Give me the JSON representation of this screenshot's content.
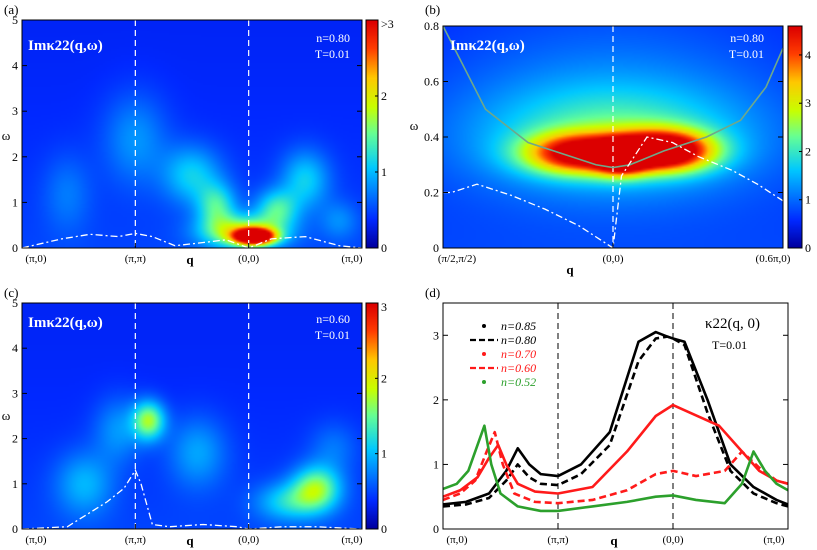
{
  "chart_data": [
    {
      "id": "a",
      "type": "heatmap",
      "panel_label": "(a)",
      "title": "Imκ22(q,ω)",
      "params": [
        "n=0.80",
        "T=0.01"
      ],
      "xlabel": "q",
      "ylabel": "ω",
      "xticks": [
        "(π,0)",
        "(π,π)",
        "(0,0)",
        "(π,0)"
      ],
      "xtick_pos": [
        0,
        1,
        2,
        3
      ],
      "xlim": [
        0,
        3
      ],
      "ylim": [
        0,
        5
      ],
      "yticks": [
        0,
        1,
        2,
        3,
        4,
        5
      ],
      "dashed_x": [
        1,
        2
      ],
      "colorbar": {
        "ticks": [
          "0",
          "1",
          "2",
          ">3"
        ],
        "values": [
          0,
          1,
          2,
          3
        ],
        "range": [
          0,
          3
        ]
      },
      "peaks": [
        {
          "x": 2.05,
          "y": 0.25,
          "sx": 0.12,
          "sy": 0.12,
          "a": 3.2
        },
        {
          "x": 1.95,
          "y": 0.35,
          "sx": 0.25,
          "sy": 0.25,
          "a": 1.4
        },
        {
          "x": 1.72,
          "y": 0.9,
          "sx": 0.12,
          "sy": 0.35,
          "a": 0.9
        },
        {
          "x": 2.25,
          "y": 0.85,
          "sx": 0.13,
          "sy": 0.3,
          "a": 0.9
        },
        {
          "x": 1.5,
          "y": 1.6,
          "sx": 0.18,
          "sy": 0.45,
          "a": 0.7
        },
        {
          "x": 2.5,
          "y": 1.5,
          "sx": 0.15,
          "sy": 0.45,
          "a": 0.7
        },
        {
          "x": 1.0,
          "y": 2.4,
          "sx": 0.2,
          "sy": 0.7,
          "a": 0.45
        },
        {
          "x": 0.4,
          "y": 1.2,
          "sx": 0.15,
          "sy": 0.6,
          "a": 0.3
        },
        {
          "x": 2.8,
          "y": 0.6,
          "sx": 0.12,
          "sy": 0.3,
          "a": 0.35
        }
      ],
      "curve": {
        "x": [
          0,
          0.35,
          0.6,
          0.85,
          1.0,
          1.15,
          1.35,
          1.6,
          1.8,
          2.0,
          2.2,
          2.5,
          2.8,
          3.0
        ],
        "y": [
          0.0,
          0.2,
          0.3,
          0.25,
          0.32,
          0.25,
          0.05,
          0.12,
          0.18,
          0.0,
          0.2,
          0.25,
          0.05,
          0.0
        ]
      }
    },
    {
      "id": "b",
      "type": "heatmap",
      "panel_label": "(b)",
      "title": "Imκ22(q,ω)",
      "params": [
        "n=0.80",
        "T=0.01"
      ],
      "xlabel": "q",
      "ylabel": "ω",
      "xticks": [
        "(π/2,π/2)",
        "(0,0)",
        "(0.6π,0)"
      ],
      "xtick_pos": [
        0,
        1,
        2
      ],
      "xlim": [
        0,
        2
      ],
      "ylim": [
        0,
        0.8
      ],
      "yticks": [
        0,
        0.2,
        0.4,
        0.6,
        0.8
      ],
      "dashed_x": [
        1
      ],
      "colorbar": {
        "ticks": [
          "0",
          "1",
          "2",
          "3",
          "4"
        ],
        "values": [
          0,
          1,
          2,
          3,
          4
        ],
        "range": [
          0,
          4.6
        ]
      },
      "peaks": [
        {
          "x": 1.3,
          "y": 0.35,
          "sx": 0.2,
          "sy": 0.05,
          "a": 4.4
        },
        {
          "x": 0.8,
          "y": 0.34,
          "sx": 0.22,
          "sy": 0.05,
          "a": 3.4
        },
        {
          "x": 1.05,
          "y": 0.32,
          "sx": 0.1,
          "sy": 0.04,
          "a": 2.5
        },
        {
          "x": 1.0,
          "y": 0.4,
          "sx": 0.55,
          "sy": 0.13,
          "a": 1.3
        },
        {
          "x": 1.0,
          "y": 0.55,
          "sx": 0.75,
          "sy": 0.25,
          "a": 0.55
        }
      ],
      "curve": {
        "x": [
          0,
          0.05,
          0.2,
          0.4,
          0.6,
          0.8,
          0.95,
          1.0,
          1.05,
          1.2,
          1.35,
          1.5,
          1.7,
          1.85,
          2.0
        ],
        "y": [
          0.2,
          0.2,
          0.23,
          0.19,
          0.14,
          0.08,
          0.02,
          0.0,
          0.26,
          0.4,
          0.38,
          0.33,
          0.28,
          0.23,
          0.17
        ]
      },
      "solid_curve": {
        "x": [
          0,
          0.1,
          0.25,
          0.5,
          0.75,
          0.9,
          1.0,
          1.1,
          1.3,
          1.55,
          1.75,
          1.9,
          2.0
        ],
        "y": [
          0.8,
          0.68,
          0.5,
          0.38,
          0.33,
          0.3,
          0.29,
          0.3,
          0.35,
          0.4,
          0.46,
          0.58,
          0.72
        ]
      }
    },
    {
      "id": "c",
      "type": "heatmap",
      "panel_label": "(c)",
      "title": "Imκ22(q,ω)",
      "params": [
        "n=0.60",
        "T=0.01"
      ],
      "xlabel": "q",
      "ylabel": "ω",
      "xticks": [
        "(π,0)",
        "(π,π)",
        "(0,0)",
        "(π,0)"
      ],
      "xtick_pos": [
        0,
        1,
        2,
        3
      ],
      "xlim": [
        0,
        3
      ],
      "ylim": [
        0,
        5
      ],
      "yticks": [
        0,
        1,
        2,
        3,
        4,
        5
      ],
      "dashed_x": [
        1,
        2
      ],
      "colorbar": {
        "ticks": [
          "0",
          "1",
          "2",
          "3"
        ],
        "values": [
          0,
          1,
          2,
          3
        ],
        "range": [
          0,
          3
        ]
      },
      "peaks": [
        {
          "x": 1.12,
          "y": 2.4,
          "sx": 0.1,
          "sy": 0.3,
          "a": 1.3
        },
        {
          "x": 2.6,
          "y": 0.9,
          "sx": 0.15,
          "sy": 0.35,
          "a": 1.2
        },
        {
          "x": 2.35,
          "y": 0.6,
          "sx": 0.2,
          "sy": 0.3,
          "a": 0.7
        },
        {
          "x": 0.55,
          "y": 1.0,
          "sx": 0.18,
          "sy": 0.5,
          "a": 0.55
        },
        {
          "x": 1.55,
          "y": 1.7,
          "sx": 0.18,
          "sy": 0.55,
          "a": 0.5
        },
        {
          "x": 0.85,
          "y": 2.2,
          "sx": 0.15,
          "sy": 0.5,
          "a": 0.45
        },
        {
          "x": 2.75,
          "y": 1.8,
          "sx": 0.15,
          "sy": 0.4,
          "a": 0.3
        }
      ],
      "curve": {
        "x": [
          0,
          0.4,
          0.75,
          0.9,
          1.0,
          1.05,
          1.15,
          1.3,
          1.6,
          1.9,
          2.0,
          2.3,
          2.6,
          3.0
        ],
        "y": [
          0.0,
          0.05,
          0.6,
          0.9,
          1.3,
          1.0,
          0.1,
          0.05,
          0.1,
          0.05,
          0.0,
          0.05,
          0.05,
          0.0
        ]
      }
    },
    {
      "id": "d",
      "type": "line",
      "panel_label": "(d)",
      "title": "κ22(q, 0)",
      "params": [
        "T=0.01"
      ],
      "xlabel": "q",
      "xticks": [
        "(π,0)",
        "(π,π)",
        "(0,0)",
        "(π,0)"
      ],
      "xtick_pos": [
        0,
        1,
        2,
        3
      ],
      "xlim": [
        0,
        3
      ],
      "ylim": [
        0,
        3.5
      ],
      "yticks": [
        0,
        1,
        2,
        3
      ],
      "dashed_x": [
        1,
        2
      ],
      "legend_position": "top-left",
      "series": [
        {
          "name": "n=0.85",
          "color": "#000000",
          "style": "dotted",
          "x": [
            0,
            0.2,
            0.4,
            0.55,
            0.65,
            0.75,
            0.85,
            1.0,
            1.2,
            1.45,
            1.7,
            1.85,
            1.95,
            2.0,
            2.1,
            2.3,
            2.5,
            2.7,
            2.9,
            3.0
          ],
          "y": [
            0.38,
            0.42,
            0.55,
            0.9,
            1.25,
            1.0,
            0.85,
            0.82,
            1.0,
            1.5,
            2.9,
            3.05,
            2.98,
            2.95,
            2.9,
            2.0,
            1.0,
            0.65,
            0.45,
            0.38
          ]
        },
        {
          "name": "n=0.80",
          "color": "#000000",
          "style": "dashed",
          "x": [
            0,
            0.2,
            0.4,
            0.55,
            0.65,
            0.75,
            0.85,
            1.0,
            1.2,
            1.45,
            1.7,
            1.85,
            1.95,
            2.0,
            2.1,
            2.3,
            2.5,
            2.7,
            2.9,
            3.0
          ],
          "y": [
            0.35,
            0.38,
            0.48,
            0.75,
            1.0,
            0.8,
            0.7,
            0.68,
            0.85,
            1.3,
            2.6,
            2.95,
            2.98,
            2.95,
            2.85,
            1.8,
            0.9,
            0.55,
            0.4,
            0.35
          ]
        },
        {
          "name": "n=0.70",
          "color": "#ff1a1a",
          "style": "dotted",
          "x": [
            0,
            0.15,
            0.3,
            0.4,
            0.48,
            0.55,
            0.65,
            0.8,
            1.0,
            1.3,
            1.6,
            1.85,
            2.0,
            2.15,
            2.4,
            2.6,
            2.75,
            2.9,
            3.0
          ],
          "y": [
            0.5,
            0.6,
            0.8,
            1.1,
            1.3,
            1.0,
            0.7,
            0.58,
            0.55,
            0.65,
            1.2,
            1.75,
            1.92,
            1.8,
            1.6,
            1.2,
            0.9,
            0.75,
            0.7
          ]
        },
        {
          "name": "n=0.60",
          "color": "#ff1a1a",
          "style": "dashed",
          "x": [
            0,
            0.15,
            0.28,
            0.38,
            0.45,
            0.52,
            0.62,
            0.8,
            1.0,
            1.3,
            1.6,
            1.85,
            2.0,
            2.2,
            2.45,
            2.6,
            2.75,
            2.9,
            3.0
          ],
          "y": [
            0.45,
            0.55,
            0.75,
            1.2,
            1.5,
            1.0,
            0.55,
            0.42,
            0.4,
            0.45,
            0.6,
            0.85,
            0.9,
            0.82,
            0.9,
            1.2,
            0.95,
            0.75,
            0.7
          ]
        },
        {
          "name": "n=0.52",
          "color": "#2ca02c",
          "style": "dotted",
          "x": [
            0,
            0.12,
            0.22,
            0.3,
            0.36,
            0.42,
            0.5,
            0.65,
            0.85,
            1.0,
            1.3,
            1.6,
            1.85,
            2.0,
            2.2,
            2.45,
            2.6,
            2.7,
            2.8,
            2.9,
            3.0
          ],
          "y": [
            0.62,
            0.7,
            0.9,
            1.3,
            1.6,
            1.0,
            0.55,
            0.35,
            0.28,
            0.28,
            0.35,
            0.42,
            0.5,
            0.52,
            0.45,
            0.4,
            0.7,
            1.2,
            0.9,
            0.7,
            0.6
          ]
        }
      ],
      "solid_series": [
        "n=0.85",
        "n=0.70",
        "n=0.52"
      ]
    }
  ]
}
